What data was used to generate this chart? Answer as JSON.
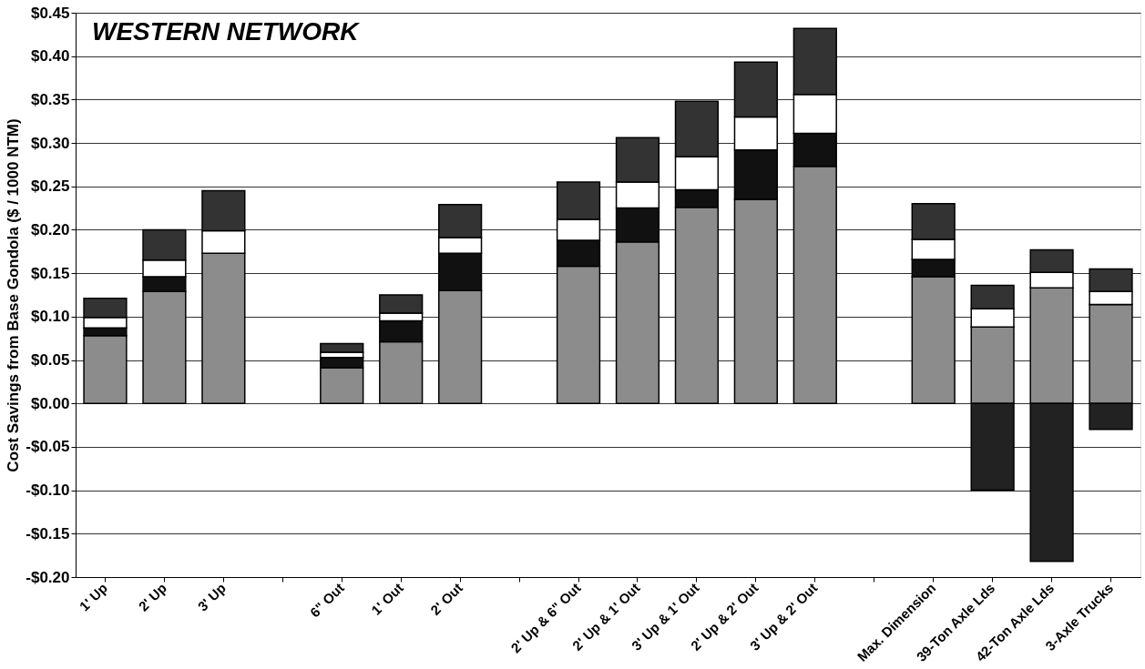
{
  "chart_data": {
    "type": "bar",
    "stacked": true,
    "title": "WESTERN NETWORK",
    "ylabel": "Cost Savings from Base Gondola ($ / 1000 NTM)",
    "categories": [
      "1' Up",
      "2' Up",
      "3' Up",
      null,
      "6\" Out",
      "1' Out",
      "2' Out",
      null,
      "2' Up & 6\" Out",
      "2' Up & 1' Out",
      "3' Up & 1' Out",
      "2' Up & 2' Out",
      "3' Up & 2' Out",
      null,
      "Max. Dimension",
      "39-Ton Axle Lds",
      "42-Ton Axle Lds",
      "3-Axle Trucks"
    ],
    "series": [
      {
        "color": "#8c8c8c",
        "values": [
          0.078,
          0.129,
          0.173,
          null,
          0.041,
          0.071,
          0.13,
          null,
          0.158,
          0.186,
          0.226,
          0.235,
          0.273,
          null,
          0.146,
          0.088,
          0.133,
          0.114
        ]
      },
      {
        "color": "#111111",
        "values": [
          0.009,
          0.017,
          0,
          null,
          0.012,
          0.024,
          0.043,
          null,
          0.03,
          0.039,
          0.02,
          0.057,
          0.038,
          null,
          0.02,
          0,
          0,
          0
        ]
      },
      {
        "color": "#ffffff",
        "values": [
          0.012,
          0.019,
          0.026,
          null,
          0.006,
          0.009,
          0.018,
          null,
          0.024,
          0.03,
          0.038,
          0.038,
          0.045,
          null,
          0.023,
          0.021,
          0.018,
          0.015
        ]
      },
      {
        "color": "#333333",
        "values": [
          0.022,
          0.035,
          0.046,
          null,
          0.01,
          0.021,
          0.038,
          null,
          0.043,
          0.051,
          0.064,
          0.063,
          0.076,
          null,
          0.041,
          0.027,
          0.026,
          0.026
        ]
      },
      {
        "color": "#222222",
        "values": [
          null,
          null,
          null,
          null,
          null,
          null,
          null,
          null,
          null,
          null,
          null,
          null,
          null,
          null,
          null,
          -0.1,
          -0.182,
          -0.03
        ]
      }
    ],
    "ylim": [
      -0.2,
      0.45
    ],
    "yticks": [
      {
        "value": -0.2,
        "label": "-$0.20"
      },
      {
        "value": -0.15,
        "label": "-$0.15"
      },
      {
        "value": -0.1,
        "label": "-$0.10"
      },
      {
        "value": -0.05,
        "label": "-$0.05"
      },
      {
        "value": 0,
        "label": "$0.00"
      },
      {
        "value": 0.05,
        "label": "$0.05"
      },
      {
        "value": 0.1,
        "label": "$0.10"
      },
      {
        "value": 0.15,
        "label": "$0.15"
      },
      {
        "value": 0.2,
        "label": "$0.20"
      },
      {
        "value": 0.25,
        "label": "$0.25"
      },
      {
        "value": 0.3,
        "label": "$0.30"
      },
      {
        "value": 0.35,
        "label": "$0.35"
      },
      {
        "value": 0.4,
        "label": "$0.40"
      },
      {
        "value": 0.45,
        "label": "$0.45"
      }
    ],
    "grid": "y"
  }
}
